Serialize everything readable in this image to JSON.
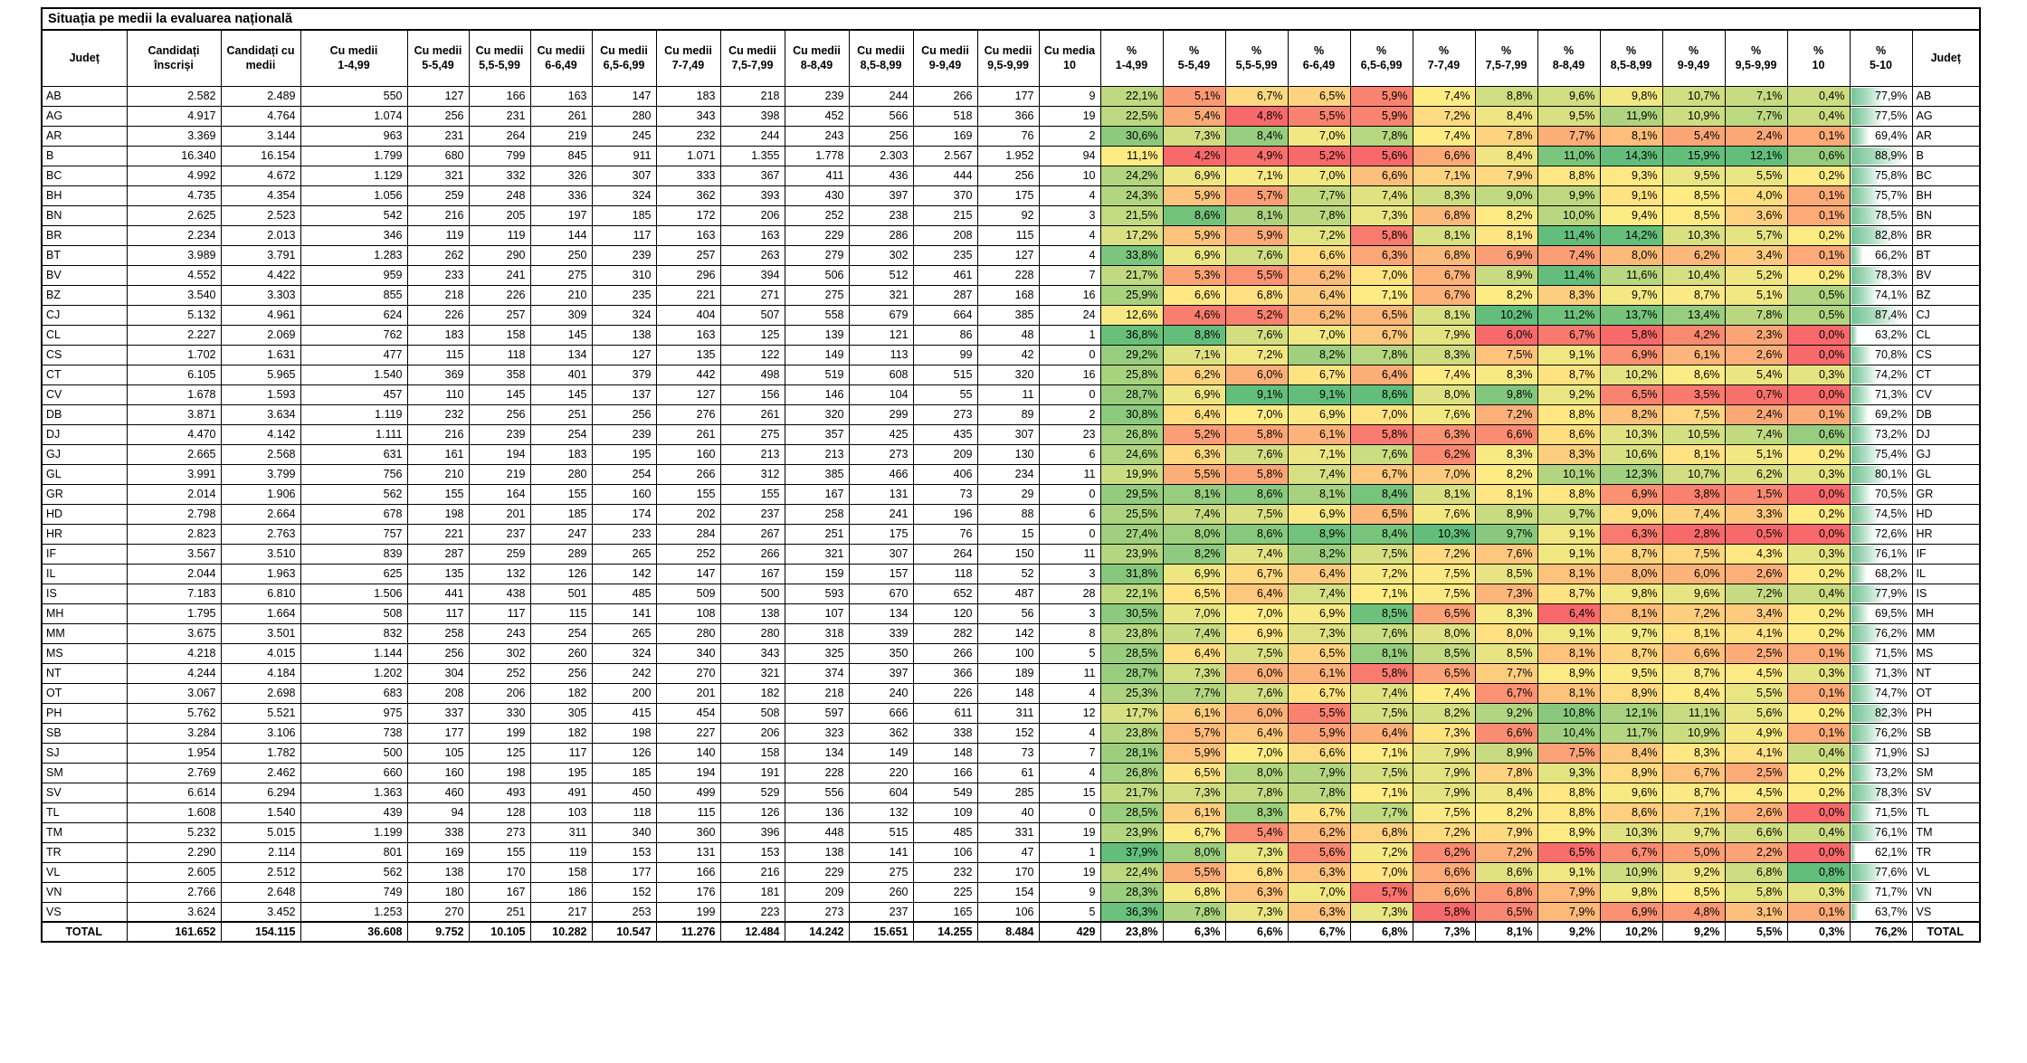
{
  "title": "Situația pe medii la evaluarea națională",
  "columns": [
    "Județ",
    "Candidați înscriși",
    "Candidați cu medii",
    "Cu medii 1-4,99",
    "Cu medii 5-5,49",
    "Cu medii 5,5-5,99",
    "Cu medii 6-6,49",
    "Cu medii 6,5-6,99",
    "Cu medii 7-7,49",
    "Cu medii 7,5-7,99",
    "Cu medii 8-8,49",
    "Cu medii 8,5-8,99",
    "Cu medii 9-9,49",
    "Cu medii 9,5-9,99",
    "Cu media 10",
    "% 1-4,99",
    "% 5-5,49",
    "% 5,5-5,99",
    "% 6-6,49",
    "% 6,5-6,99",
    "% 7-7,49",
    "% 7,5-7,99",
    "% 8-8,49",
    "% 8,5-8,99",
    "% 9-9,49",
    "% 9,5-9,99",
    "% 10",
    "% 5-10",
    "Județ"
  ],
  "rows": [
    [
      "AB",
      "2.582",
      "2.489",
      "550",
      "127",
      "166",
      "163",
      "147",
      "183",
      "218",
      "239",
      "244",
      "266",
      "177",
      "9",
      "22,1%",
      "5,1%",
      "6,7%",
      "6,5%",
      "5,9%",
      "7,4%",
      "8,8%",
      "9,6%",
      "9,8%",
      "10,7%",
      "7,1%",
      "0,4%",
      "77,9%",
      "AB"
    ],
    [
      "AG",
      "4.917",
      "4.764",
      "1.074",
      "256",
      "231",
      "261",
      "280",
      "343",
      "398",
      "452",
      "566",
      "518",
      "366",
      "19",
      "22,5%",
      "5,4%",
      "4,8%",
      "5,5%",
      "5,9%",
      "7,2%",
      "8,4%",
      "9,5%",
      "11,9%",
      "10,9%",
      "7,7%",
      "0,4%",
      "77,5%",
      "AG"
    ],
    [
      "AR",
      "3.369",
      "3.144",
      "963",
      "231",
      "264",
      "219",
      "245",
      "232",
      "244",
      "243",
      "256",
      "169",
      "76",
      "2",
      "30,6%",
      "7,3%",
      "8,4%",
      "7,0%",
      "7,8%",
      "7,4%",
      "7,8%",
      "7,7%",
      "8,1%",
      "5,4%",
      "2,4%",
      "0,1%",
      "69,4%",
      "AR"
    ],
    [
      "B",
      "16.340",
      "16.154",
      "1.799",
      "680",
      "799",
      "845",
      "911",
      "1.071",
      "1.355",
      "1.778",
      "2.303",
      "2.567",
      "1.952",
      "94",
      "11,1%",
      "4,2%",
      "4,9%",
      "5,2%",
      "5,6%",
      "6,6%",
      "8,4%",
      "11,0%",
      "14,3%",
      "15,9%",
      "12,1%",
      "0,6%",
      "88,9%",
      "B"
    ],
    [
      "BC",
      "4.992",
      "4.672",
      "1.129",
      "321",
      "332",
      "326",
      "307",
      "333",
      "367",
      "411",
      "436",
      "444",
      "256",
      "10",
      "24,2%",
      "6,9%",
      "7,1%",
      "7,0%",
      "6,6%",
      "7,1%",
      "7,9%",
      "8,8%",
      "9,3%",
      "9,5%",
      "5,5%",
      "0,2%",
      "75,8%",
      "BC"
    ],
    [
      "BH",
      "4.735",
      "4.354",
      "1.056",
      "259",
      "248",
      "336",
      "324",
      "362",
      "393",
      "430",
      "397",
      "370",
      "175",
      "4",
      "24,3%",
      "5,9%",
      "5,7%",
      "7,7%",
      "7,4%",
      "8,3%",
      "9,0%",
      "9,9%",
      "9,1%",
      "8,5%",
      "4,0%",
      "0,1%",
      "75,7%",
      "BH"
    ],
    [
      "BN",
      "2.625",
      "2.523",
      "542",
      "216",
      "205",
      "197",
      "185",
      "172",
      "206",
      "252",
      "238",
      "215",
      "92",
      "3",
      "21,5%",
      "8,6%",
      "8,1%",
      "7,8%",
      "7,3%",
      "6,8%",
      "8,2%",
      "10,0%",
      "9,4%",
      "8,5%",
      "3,6%",
      "0,1%",
      "78,5%",
      "BN"
    ],
    [
      "BR",
      "2.234",
      "2.013",
      "346",
      "119",
      "119",
      "144",
      "117",
      "163",
      "163",
      "229",
      "286",
      "208",
      "115",
      "4",
      "17,2%",
      "5,9%",
      "5,9%",
      "7,2%",
      "5,8%",
      "8,1%",
      "8,1%",
      "11,4%",
      "14,2%",
      "10,3%",
      "5,7%",
      "0,2%",
      "82,8%",
      "BR"
    ],
    [
      "BT",
      "3.989",
      "3.791",
      "1.283",
      "262",
      "290",
      "250",
      "239",
      "257",
      "263",
      "279",
      "302",
      "235",
      "127",
      "4",
      "33,8%",
      "6,9%",
      "7,6%",
      "6,6%",
      "6,3%",
      "6,8%",
      "6,9%",
      "7,4%",
      "8,0%",
      "6,2%",
      "3,4%",
      "0,1%",
      "66,2%",
      "BT"
    ],
    [
      "BV",
      "4.552",
      "4.422",
      "959",
      "233",
      "241",
      "275",
      "310",
      "296",
      "394",
      "506",
      "512",
      "461",
      "228",
      "7",
      "21,7%",
      "5,3%",
      "5,5%",
      "6,2%",
      "7,0%",
      "6,7%",
      "8,9%",
      "11,4%",
      "11,6%",
      "10,4%",
      "5,2%",
      "0,2%",
      "78,3%",
      "BV"
    ],
    [
      "BZ",
      "3.540",
      "3.303",
      "855",
      "218",
      "226",
      "210",
      "235",
      "221",
      "271",
      "275",
      "321",
      "287",
      "168",
      "16",
      "25,9%",
      "6,6%",
      "6,8%",
      "6,4%",
      "7,1%",
      "6,7%",
      "8,2%",
      "8,3%",
      "9,7%",
      "8,7%",
      "5,1%",
      "0,5%",
      "74,1%",
      "BZ"
    ],
    [
      "CJ",
      "5.132",
      "4.961",
      "624",
      "226",
      "257",
      "309",
      "324",
      "404",
      "507",
      "558",
      "679",
      "664",
      "385",
      "24",
      "12,6%",
      "4,6%",
      "5,2%",
      "6,2%",
      "6,5%",
      "8,1%",
      "10,2%",
      "11,2%",
      "13,7%",
      "13,4%",
      "7,8%",
      "0,5%",
      "87,4%",
      "CJ"
    ],
    [
      "CL",
      "2.227",
      "2.069",
      "762",
      "183",
      "158",
      "145",
      "138",
      "163",
      "125",
      "139",
      "121",
      "86",
      "48",
      "1",
      "36,8%",
      "8,8%",
      "7,6%",
      "7,0%",
      "6,7%",
      "7,9%",
      "6,0%",
      "6,7%",
      "5,8%",
      "4,2%",
      "2,3%",
      "0,0%",
      "63,2%",
      "CL"
    ],
    [
      "CS",
      "1.702",
      "1.631",
      "477",
      "115",
      "118",
      "134",
      "127",
      "135",
      "122",
      "149",
      "113",
      "99",
      "42",
      "0",
      "29,2%",
      "7,1%",
      "7,2%",
      "8,2%",
      "7,8%",
      "8,3%",
      "7,5%",
      "9,1%",
      "6,9%",
      "6,1%",
      "2,6%",
      "0,0%",
      "70,8%",
      "CS"
    ],
    [
      "CT",
      "6.105",
      "5.965",
      "1.540",
      "369",
      "358",
      "401",
      "379",
      "442",
      "498",
      "519",
      "608",
      "515",
      "320",
      "16",
      "25,8%",
      "6,2%",
      "6,0%",
      "6,7%",
      "6,4%",
      "7,4%",
      "8,3%",
      "8,7%",
      "10,2%",
      "8,6%",
      "5,4%",
      "0,3%",
      "74,2%",
      "CT"
    ],
    [
      "CV",
      "1.678",
      "1.593",
      "457",
      "110",
      "145",
      "145",
      "137",
      "127",
      "156",
      "146",
      "104",
      "55",
      "11",
      "0",
      "28,7%",
      "6,9%",
      "9,1%",
      "9,1%",
      "8,6%",
      "8,0%",
      "9,8%",
      "9,2%",
      "6,5%",
      "3,5%",
      "0,7%",
      "0,0%",
      "71,3%",
      "CV"
    ],
    [
      "DB",
      "3.871",
      "3.634",
      "1.119",
      "232",
      "256",
      "251",
      "256",
      "276",
      "261",
      "320",
      "299",
      "273",
      "89",
      "2",
      "30,8%",
      "6,4%",
      "7,0%",
      "6,9%",
      "7,0%",
      "7,6%",
      "7,2%",
      "8,8%",
      "8,2%",
      "7,5%",
      "2,4%",
      "0,1%",
      "69,2%",
      "DB"
    ],
    [
      "DJ",
      "4.470",
      "4.142",
      "1.111",
      "216",
      "239",
      "254",
      "239",
      "261",
      "275",
      "357",
      "425",
      "435",
      "307",
      "23",
      "26,8%",
      "5,2%",
      "5,8%",
      "6,1%",
      "5,8%",
      "6,3%",
      "6,6%",
      "8,6%",
      "10,3%",
      "10,5%",
      "7,4%",
      "0,6%",
      "73,2%",
      "DJ"
    ],
    [
      "GJ",
      "2.665",
      "2.568",
      "631",
      "161",
      "194",
      "183",
      "195",
      "160",
      "213",
      "213",
      "273",
      "209",
      "130",
      "6",
      "24,6%",
      "6,3%",
      "7,6%",
      "7,1%",
      "7,6%",
      "6,2%",
      "8,3%",
      "8,3%",
      "10,6%",
      "8,1%",
      "5,1%",
      "0,2%",
      "75,4%",
      "GJ"
    ],
    [
      "GL",
      "3.991",
      "3.799",
      "756",
      "210",
      "219",
      "280",
      "254",
      "266",
      "312",
      "385",
      "466",
      "406",
      "234",
      "11",
      "19,9%",
      "5,5%",
      "5,8%",
      "7,4%",
      "6,7%",
      "7,0%",
      "8,2%",
      "10,1%",
      "12,3%",
      "10,7%",
      "6,2%",
      "0,3%",
      "80,1%",
      "GL"
    ],
    [
      "GR",
      "2.014",
      "1.906",
      "562",
      "155",
      "164",
      "155",
      "160",
      "155",
      "155",
      "167",
      "131",
      "73",
      "29",
      "0",
      "29,5%",
      "8,1%",
      "8,6%",
      "8,1%",
      "8,4%",
      "8,1%",
      "8,1%",
      "8,8%",
      "6,9%",
      "3,8%",
      "1,5%",
      "0,0%",
      "70,5%",
      "GR"
    ],
    [
      "HD",
      "2.798",
      "2.664",
      "678",
      "198",
      "201",
      "185",
      "174",
      "202",
      "237",
      "258",
      "241",
      "196",
      "88",
      "6",
      "25,5%",
      "7,4%",
      "7,5%",
      "6,9%",
      "6,5%",
      "7,6%",
      "8,9%",
      "9,7%",
      "9,0%",
      "7,4%",
      "3,3%",
      "0,2%",
      "74,5%",
      "HD"
    ],
    [
      "HR",
      "2.823",
      "2.763",
      "757",
      "221",
      "237",
      "247",
      "233",
      "284",
      "267",
      "251",
      "175",
      "76",
      "15",
      "0",
      "27,4%",
      "8,0%",
      "8,6%",
      "8,9%",
      "8,4%",
      "10,3%",
      "9,7%",
      "9,1%",
      "6,3%",
      "2,8%",
      "0,5%",
      "0,0%",
      "72,6%",
      "HR"
    ],
    [
      "IF",
      "3.567",
      "3.510",
      "839",
      "287",
      "259",
      "289",
      "265",
      "252",
      "266",
      "321",
      "307",
      "264",
      "150",
      "11",
      "23,9%",
      "8,2%",
      "7,4%",
      "8,2%",
      "7,5%",
      "7,2%",
      "7,6%",
      "9,1%",
      "8,7%",
      "7,5%",
      "4,3%",
      "0,3%",
      "76,1%",
      "IF"
    ],
    [
      "IL",
      "2.044",
      "1.963",
      "625",
      "135",
      "132",
      "126",
      "142",
      "147",
      "167",
      "159",
      "157",
      "118",
      "52",
      "3",
      "31,8%",
      "6,9%",
      "6,7%",
      "6,4%",
      "7,2%",
      "7,5%",
      "8,5%",
      "8,1%",
      "8,0%",
      "6,0%",
      "2,6%",
      "0,2%",
      "68,2%",
      "IL"
    ],
    [
      "IS",
      "7.183",
      "6.810",
      "1.506",
      "441",
      "438",
      "501",
      "485",
      "509",
      "500",
      "593",
      "670",
      "652",
      "487",
      "28",
      "22,1%",
      "6,5%",
      "6,4%",
      "7,4%",
      "7,1%",
      "7,5%",
      "7,3%",
      "8,7%",
      "9,8%",
      "9,6%",
      "7,2%",
      "0,4%",
      "77,9%",
      "IS"
    ],
    [
      "MH",
      "1.795",
      "1.664",
      "508",
      "117",
      "117",
      "115",
      "141",
      "108",
      "138",
      "107",
      "134",
      "120",
      "56",
      "3",
      "30,5%",
      "7,0%",
      "7,0%",
      "6,9%",
      "8,5%",
      "6,5%",
      "8,3%",
      "6,4%",
      "8,1%",
      "7,2%",
      "3,4%",
      "0,2%",
      "69,5%",
      "MH"
    ],
    [
      "MM",
      "3.675",
      "3.501",
      "832",
      "258",
      "243",
      "254",
      "265",
      "280",
      "280",
      "318",
      "339",
      "282",
      "142",
      "8",
      "23,8%",
      "7,4%",
      "6,9%",
      "7,3%",
      "7,6%",
      "8,0%",
      "8,0%",
      "9,1%",
      "9,7%",
      "8,1%",
      "4,1%",
      "0,2%",
      "76,2%",
      "MM"
    ],
    [
      "MS",
      "4.218",
      "4.015",
      "1.144",
      "256",
      "302",
      "260",
      "324",
      "340",
      "343",
      "325",
      "350",
      "266",
      "100",
      "5",
      "28,5%",
      "6,4%",
      "7,5%",
      "6,5%",
      "8,1%",
      "8,5%",
      "8,5%",
      "8,1%",
      "8,7%",
      "6,6%",
      "2,5%",
      "0,1%",
      "71,5%",
      "MS"
    ],
    [
      "NT",
      "4.244",
      "4.184",
      "1.202",
      "304",
      "252",
      "256",
      "242",
      "270",
      "321",
      "374",
      "397",
      "366",
      "189",
      "11",
      "28,7%",
      "7,3%",
      "6,0%",
      "6,1%",
      "5,8%",
      "6,5%",
      "7,7%",
      "8,9%",
      "9,5%",
      "8,7%",
      "4,5%",
      "0,3%",
      "71,3%",
      "NT"
    ],
    [
      "OT",
      "3.067",
      "2.698",
      "683",
      "208",
      "206",
      "182",
      "200",
      "201",
      "182",
      "218",
      "240",
      "226",
      "148",
      "4",
      "25,3%",
      "7,7%",
      "7,6%",
      "6,7%",
      "7,4%",
      "7,4%",
      "6,7%",
      "8,1%",
      "8,9%",
      "8,4%",
      "5,5%",
      "0,1%",
      "74,7%",
      "OT"
    ],
    [
      "PH",
      "5.762",
      "5.521",
      "975",
      "337",
      "330",
      "305",
      "415",
      "454",
      "508",
      "597",
      "666",
      "611",
      "311",
      "12",
      "17,7%",
      "6,1%",
      "6,0%",
      "5,5%",
      "7,5%",
      "8,2%",
      "9,2%",
      "10,8%",
      "12,1%",
      "11,1%",
      "5,6%",
      "0,2%",
      "82,3%",
      "PH"
    ],
    [
      "SB",
      "3.284",
      "3.106",
      "738",
      "177",
      "199",
      "182",
      "198",
      "227",
      "206",
      "323",
      "362",
      "338",
      "152",
      "4",
      "23,8%",
      "5,7%",
      "6,4%",
      "5,9%",
      "6,4%",
      "7,3%",
      "6,6%",
      "10,4%",
      "11,7%",
      "10,9%",
      "4,9%",
      "0,1%",
      "76,2%",
      "SB"
    ],
    [
      "SJ",
      "1.954",
      "1.782",
      "500",
      "105",
      "125",
      "117",
      "126",
      "140",
      "158",
      "134",
      "149",
      "148",
      "73",
      "7",
      "28,1%",
      "5,9%",
      "7,0%",
      "6,6%",
      "7,1%",
      "7,9%",
      "8,9%",
      "7,5%",
      "8,4%",
      "8,3%",
      "4,1%",
      "0,4%",
      "71,9%",
      "SJ"
    ],
    [
      "SM",
      "2.769",
      "2.462",
      "660",
      "160",
      "198",
      "195",
      "185",
      "194",
      "191",
      "228",
      "220",
      "166",
      "61",
      "4",
      "26,8%",
      "6,5%",
      "8,0%",
      "7,9%",
      "7,5%",
      "7,9%",
      "7,8%",
      "9,3%",
      "8,9%",
      "6,7%",
      "2,5%",
      "0,2%",
      "73,2%",
      "SM"
    ],
    [
      "SV",
      "6.614",
      "6.294",
      "1.363",
      "460",
      "493",
      "491",
      "450",
      "499",
      "529",
      "556",
      "604",
      "549",
      "285",
      "15",
      "21,7%",
      "7,3%",
      "7,8%",
      "7,8%",
      "7,1%",
      "7,9%",
      "8,4%",
      "8,8%",
      "9,6%",
      "8,7%",
      "4,5%",
      "0,2%",
      "78,3%",
      "SV"
    ],
    [
      "TL",
      "1.608",
      "1.540",
      "439",
      "94",
      "128",
      "103",
      "118",
      "115",
      "126",
      "136",
      "132",
      "109",
      "40",
      "0",
      "28,5%",
      "6,1%",
      "8,3%",
      "6,7%",
      "7,7%",
      "7,5%",
      "8,2%",
      "8,8%",
      "8,6%",
      "7,1%",
      "2,6%",
      "0,0%",
      "71,5%",
      "TL"
    ],
    [
      "TM",
      "5.232",
      "5.015",
      "1.199",
      "338",
      "273",
      "311",
      "340",
      "360",
      "396",
      "448",
      "515",
      "485",
      "331",
      "19",
      "23,9%",
      "6,7%",
      "5,4%",
      "6,2%",
      "6,8%",
      "7,2%",
      "7,9%",
      "8,9%",
      "10,3%",
      "9,7%",
      "6,6%",
      "0,4%",
      "76,1%",
      "TM"
    ],
    [
      "TR",
      "2.290",
      "2.114",
      "801",
      "169",
      "155",
      "119",
      "153",
      "131",
      "153",
      "138",
      "141",
      "106",
      "47",
      "1",
      "37,9%",
      "8,0%",
      "7,3%",
      "5,6%",
      "7,2%",
      "6,2%",
      "7,2%",
      "6,5%",
      "6,7%",
      "5,0%",
      "2,2%",
      "0,0%",
      "62,1%",
      "TR"
    ],
    [
      "VL",
      "2.605",
      "2.512",
      "562",
      "138",
      "170",
      "158",
      "177",
      "166",
      "216",
      "229",
      "275",
      "232",
      "170",
      "19",
      "22,4%",
      "5,5%",
      "6,8%",
      "6,3%",
      "7,0%",
      "6,6%",
      "8,6%",
      "9,1%",
      "10,9%",
      "9,2%",
      "6,8%",
      "0,8%",
      "77,6%",
      "VL"
    ],
    [
      "VN",
      "2.766",
      "2.648",
      "749",
      "180",
      "167",
      "186",
      "152",
      "176",
      "181",
      "209",
      "260",
      "225",
      "154",
      "9",
      "28,3%",
      "6,8%",
      "6,3%",
      "7,0%",
      "5,7%",
      "6,6%",
      "6,8%",
      "7,9%",
      "9,8%",
      "8,5%",
      "5,8%",
      "0,3%",
      "71,7%",
      "VN"
    ],
    [
      "VS",
      "3.624",
      "3.452",
      "1.253",
      "270",
      "251",
      "217",
      "253",
      "199",
      "223",
      "273",
      "237",
      "165",
      "106",
      "5",
      "36,3%",
      "7,8%",
      "7,3%",
      "6,3%",
      "7,3%",
      "5,8%",
      "6,5%",
      "7,9%",
      "6,9%",
      "4,8%",
      "3,1%",
      "0,1%",
      "63,7%",
      "VS"
    ]
  ],
  "total_row": [
    "TOTAL",
    "161.652",
    "154.115",
    "36.608",
    "9.752",
    "10.105",
    "10.282",
    "10.547",
    "11.276",
    "12.484",
    "14.242",
    "15.651",
    "14.255",
    "8.484",
    "429",
    "23,8%",
    "6,3%",
    "6,6%",
    "6,7%",
    "6,8%",
    "7,3%",
    "8,1%",
    "9,2%",
    "10,2%",
    "9,2%",
    "5,5%",
    "0,3%",
    "76,2%",
    "TOTAL"
  ],
  "colors": {
    "scale_red": "#F8696B",
    "scale_yellow": "#FFEB84",
    "scale_green": "#63BE7B",
    "bar_green": "#72C394",
    "grid": "#000000"
  }
}
